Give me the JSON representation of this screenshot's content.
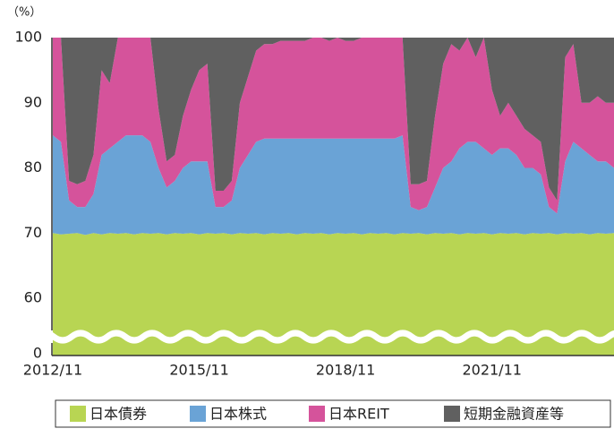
{
  "chart_data": {
    "type": "stacked_area",
    "y_label": "（%）",
    "ylim": [
      0,
      100
    ],
    "yticks": [
      0,
      60,
      70,
      80,
      90,
      100
    ],
    "y_break": [
      0,
      60
    ],
    "xticks": [
      "2012/11",
      "2015/11",
      "2018/11",
      "2021/11"
    ],
    "x": [
      "2012/11",
      "2013/01",
      "2013/03",
      "2013/05",
      "2013/07",
      "2013/09",
      "2013/11",
      "2014/01",
      "2014/03",
      "2014/05",
      "2014/07",
      "2014/09",
      "2014/11",
      "2015/01",
      "2015/03",
      "2015/05",
      "2015/07",
      "2015/09",
      "2015/11",
      "2016/01",
      "2016/03",
      "2016/05",
      "2016/07",
      "2016/09",
      "2016/11",
      "2017/01",
      "2017/03",
      "2017/05",
      "2017/07",
      "2017/09",
      "2017/11",
      "2018/01",
      "2018/03",
      "2018/05",
      "2018/07",
      "2018/09",
      "2018/11",
      "2019/01",
      "2019/03",
      "2019/05",
      "2019/07",
      "2019/09",
      "2019/11",
      "2020/01",
      "2020/03",
      "2020/05",
      "2020/07",
      "2020/09",
      "2020/11",
      "2021/01",
      "2021/03",
      "2021/05",
      "2021/07",
      "2021/09",
      "2021/11",
      "2022/01",
      "2022/03",
      "2022/05",
      "2022/07",
      "2022/09",
      "2022/11",
      "2023/01",
      "2023/03",
      "2023/05",
      "2023/07",
      "2023/09",
      "2023/11",
      "2024/01",
      "2024/03",
      "2024/05"
    ],
    "series": [
      {
        "name": "日本債券",
        "color": "#b8d553",
        "values": [
          70,
          69.8,
          69.9,
          70,
          69.7,
          70,
          69.8,
          70,
          69.9,
          70,
          69.8,
          70,
          69.9,
          70,
          69.8,
          70,
          69.9,
          70,
          69.8,
          70,
          69.9,
          70,
          69.8,
          70,
          69.9,
          70,
          69.8,
          70,
          69.9,
          70,
          69.8,
          70,
          69.9,
          70,
          69.8,
          70,
          69.9,
          70,
          69.8,
          70,
          69.9,
          70,
          69.8,
          70,
          69.9,
          70,
          69.8,
          70,
          69.9,
          70,
          69.8,
          70,
          69.9,
          70,
          69.8,
          70,
          69.9,
          70,
          69.8,
          70,
          69.9,
          70,
          69.8,
          70,
          69.9,
          70,
          69.8,
          70,
          69.9,
          70
        ]
      },
      {
        "name": "日本株式",
        "color": "#6aa3d6",
        "values": [
          15,
          14.2,
          5.1,
          4,
          4.3,
          6,
          12.2,
          13,
          14.1,
          15,
          15.2,
          15,
          14.1,
          10,
          7.2,
          8,
          10.1,
          11,
          11.2,
          11,
          4.1,
          4,
          5.2,
          10,
          12.1,
          14,
          14.7,
          14.5,
          14.6,
          14.5,
          14.7,
          14.5,
          14.6,
          14.5,
          14.7,
          14.5,
          14.6,
          14.5,
          14.7,
          14.5,
          14.6,
          14.5,
          14.7,
          15,
          4.1,
          3.5,
          4.2,
          7,
          10.1,
          11,
          13.2,
          14,
          14.1,
          13,
          12.2,
          13,
          13.1,
          12,
          10.2,
          10,
          9.1,
          4,
          3.2,
          11,
          14.1,
          13,
          12.2,
          11,
          11.1,
          10
        ]
      },
      {
        "name": "日本REIT",
        "color": "#d5539b",
        "values": [
          15,
          16,
          3,
          3.5,
          4,
          6,
          13,
          10,
          16,
          15,
          15,
          15,
          16,
          9,
          4,
          4,
          8,
          11,
          14,
          15,
          2.5,
          2.5,
          3,
          10,
          12,
          14,
          14.5,
          14.5,
          15,
          15,
          15,
          15,
          15.5,
          15.5,
          15,
          15.5,
          15,
          15,
          15.5,
          15.5,
          15.5,
          15.5,
          15.5,
          15,
          3.5,
          4,
          4,
          11,
          16,
          18,
          15,
          16,
          13,
          17,
          10,
          5,
          7,
          6,
          6,
          5,
          5,
          3,
          2,
          16,
          15,
          7,
          8,
          10,
          9,
          10
        ]
      },
      {
        "name": "短期金融資産等",
        "color": "#606060",
        "values": [
          0,
          0,
          22,
          22.5,
          22,
          18,
          5,
          7,
          0,
          0,
          0,
          0,
          0,
          11,
          19,
          18,
          12,
          8,
          5,
          4,
          23.5,
          23.5,
          22,
          10,
          6,
          2,
          1,
          1,
          0.5,
          0.5,
          0.5,
          0.5,
          0,
          0,
          0.5,
          0,
          0.5,
          0.5,
          0,
          0,
          0,
          0,
          0,
          0,
          22.5,
          22.5,
          22,
          12,
          4,
          1,
          2,
          0,
          3,
          0,
          8,
          12,
          10,
          12,
          14,
          15,
          16,
          23,
          25,
          3,
          1,
          10,
          10,
          9,
          10,
          10
        ]
      }
    ]
  }
}
